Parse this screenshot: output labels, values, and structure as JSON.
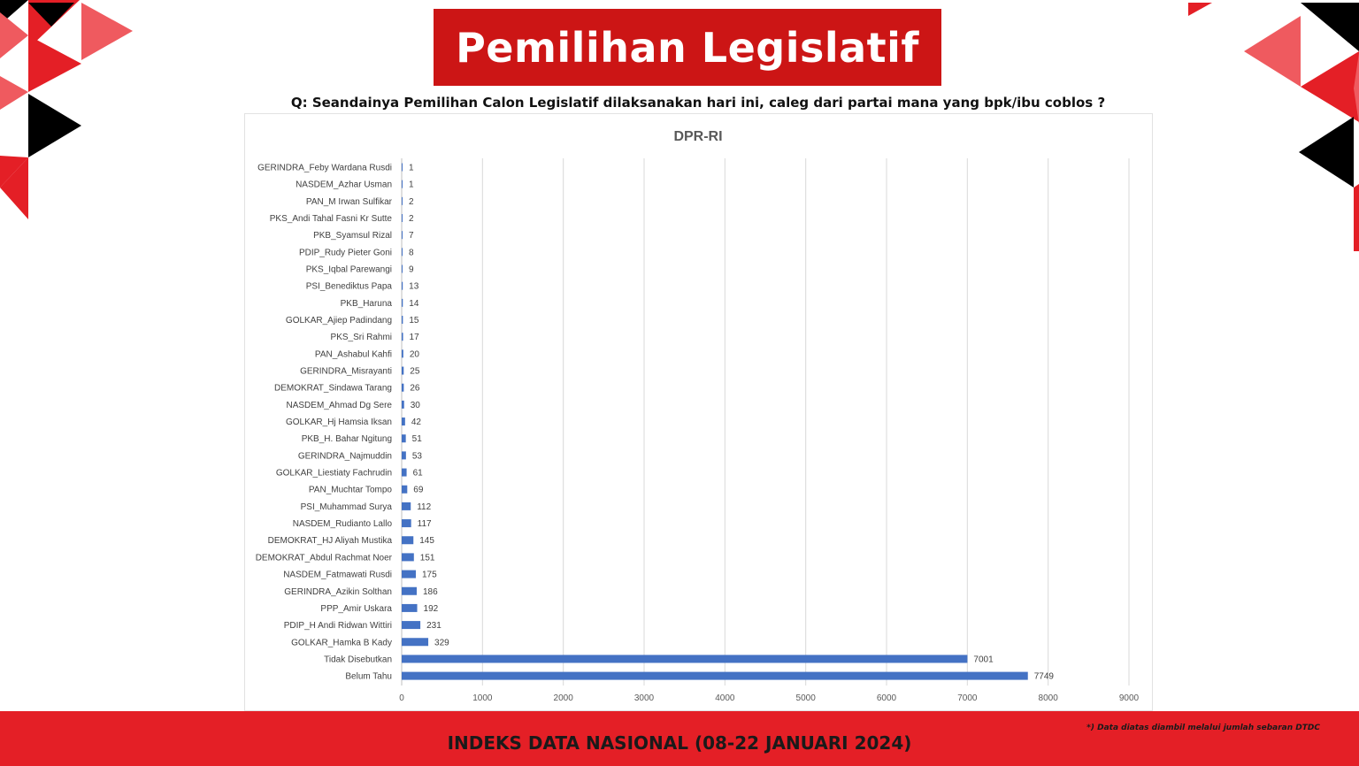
{
  "header": {
    "title": "Pemilihan Legislatif",
    "question": "Q: Seandainya Pemilihan Calon Legislatif dilaksanakan hari ini, caleg dari partai mana yang bpk/ibu coblos ?"
  },
  "footer": {
    "title": "INDEKS DATA NASIONAL (08-22 JANUARI 2024)",
    "note": "*) Data diatas diambil melalui jumlah sebaran DTDC"
  },
  "colors": {
    "bar": "#4472c4",
    "banner": "#cc1515",
    "footer": "#e41f26",
    "accent_light": "#ef5a5f",
    "dark": "#000000"
  },
  "chart_data": {
    "type": "bar",
    "orientation": "horizontal",
    "title": "DPR-RI",
    "xlabel": "",
    "ylabel": "",
    "xlim": [
      0,
      9000
    ],
    "x_ticks": [
      "0",
      "1000",
      "2000",
      "3000",
      "4000",
      "5000",
      "6000",
      "7000",
      "8000",
      "9000"
    ],
    "grid": "vertical",
    "legend": "none",
    "categories": [
      "GERINDRA_Feby Wardana Rusdi",
      "NASDEM_Azhar Usman",
      "PAN_M Irwan Sulfikar",
      "PKS_Andi Tahal Fasni Kr Sutte",
      "PKB_Syamsul Rizal",
      "PDIP_Rudy Pieter Goni",
      "PKS_Iqbal Parewangi",
      "PSI_Benediktus Papa",
      "PKB_Haruna",
      "GOLKAR_Ajiep Padindang",
      "PKS_Sri Rahmi",
      "PAN_Ashabul Kahfi",
      "GERINDRA_Misrayanti",
      "DEMOKRAT_Sindawa Tarang",
      "NASDEM_Ahmad Dg Sere",
      "GOLKAR_Hj Hamsia Iksan",
      "PKB_H. Bahar Ngitung",
      "GERINDRA_Najmuddin",
      "GOLKAR_Liestiaty Fachrudin",
      "PAN_Muchtar Tompo",
      "PSI_Muhammad Surya",
      "NASDEM_Rudianto Lallo",
      "DEMOKRAT_HJ Aliyah Mustika",
      "DEMOKRAT_Abdul Rachmat Noer",
      "NASDEM_Fatmawati Rusdi",
      "GERINDRA_Azikin Solthan",
      "PPP_Amir Uskara",
      "PDIP_H Andi Ridwan Wittiri",
      "GOLKAR_Hamka B Kady",
      "Tidak Disebutkan",
      "Belum Tahu"
    ],
    "values": [
      1,
      1,
      2,
      2,
      7,
      8,
      9,
      13,
      14,
      15,
      17,
      20,
      25,
      26,
      30,
      42,
      51,
      53,
      61,
      69,
      112,
      117,
      145,
      151,
      175,
      186,
      192,
      231,
      329,
      7001,
      7749
    ]
  }
}
